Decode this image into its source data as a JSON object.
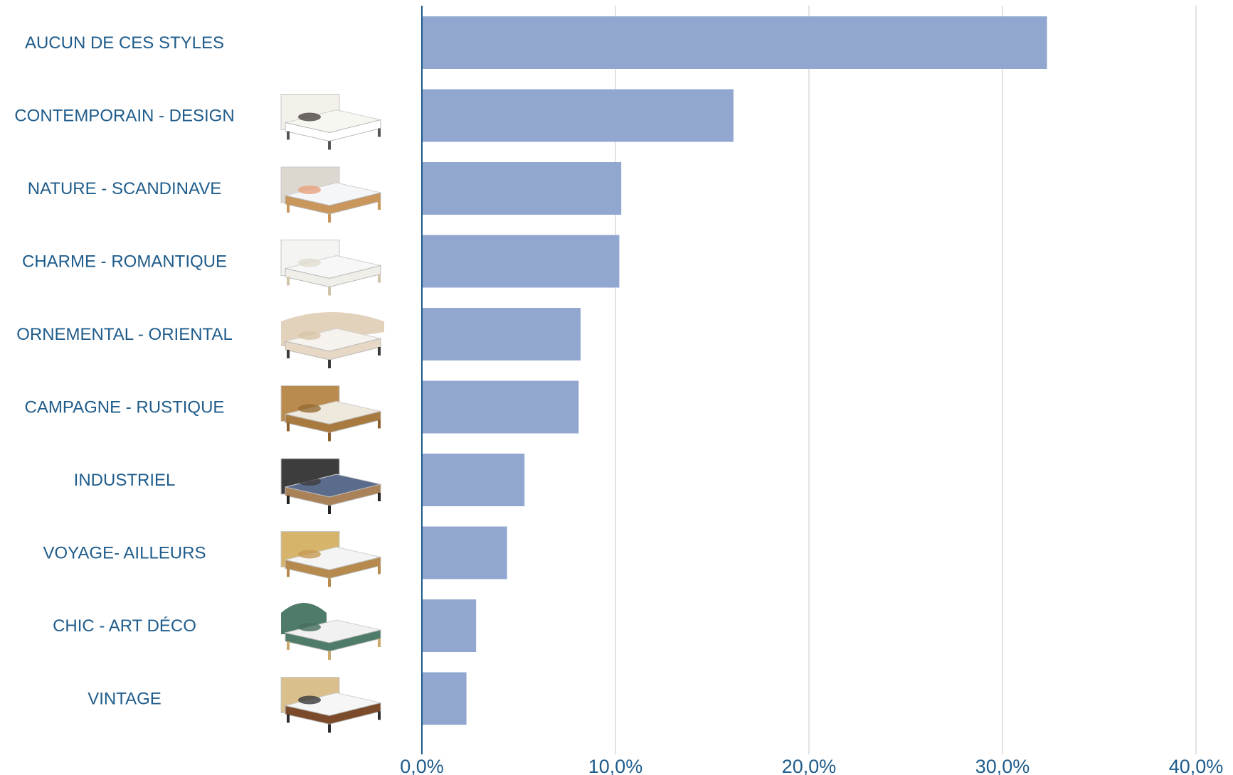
{
  "chart_data": {
    "type": "bar",
    "orientation": "horizontal",
    "title": "",
    "xlabel": "",
    "ylabel": "",
    "categories": [
      "AUCUN DE CES STYLES",
      "CONTEMPORAIN - DESIGN",
      "NATURE - SCANDINAVE",
      "CHARME - ROMANTIQUE",
      "ORNEMENTAL - ORIENTAL",
      "CAMPAGNE - RUSTIQUE",
      "INDUSTRIEL",
      "VOYAGE- AILLEURS",
      "CHIC - ART DÉCO",
      "VINTAGE"
    ],
    "values": [
      32.3,
      16.1,
      10.3,
      10.2,
      8.2,
      8.1,
      5.3,
      4.4,
      2.8,
      2.3
    ],
    "xlim": [
      0,
      40
    ],
    "x_ticks": [
      0,
      10,
      20,
      30,
      40
    ],
    "x_tick_labels": [
      "0,0%",
      "10,0%",
      "20,0%",
      "30,0%",
      "40,0%"
    ],
    "grid": "vertical",
    "legend": "none",
    "colors": {
      "bar": "#91a7cf",
      "label": "#1f5c8b",
      "axis": "#1f5c8b",
      "grid": "#d4d4d4"
    },
    "category_icons": [
      "none",
      "bed-contemporary-icon",
      "bed-scandinavian-icon",
      "bed-romantic-icon",
      "bed-oriental-icon",
      "bed-rustic-icon",
      "bed-industrial-icon",
      "bed-travel-icon",
      "bed-art-deco-icon",
      "bed-vintage-icon"
    ]
  }
}
